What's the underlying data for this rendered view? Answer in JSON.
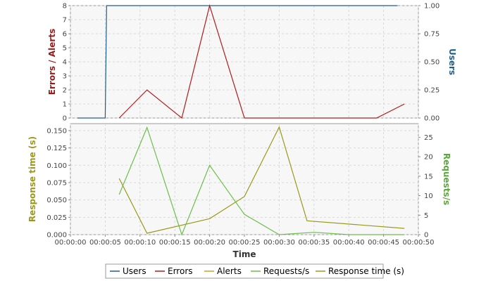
{
  "chart_data": [
    {
      "type": "line",
      "panel": "top",
      "xlabel": "",
      "ylabel_left": "Errors / Alerts",
      "ylabel_right": "Users",
      "ylim_left": [
        0,
        8
      ],
      "ylim_right": [
        0,
        1
      ],
      "yticks_left": [
        0,
        1,
        2,
        3,
        4,
        5,
        6,
        7,
        8
      ],
      "yticks_right": [
        0,
        0.25,
        0.5,
        0.75,
        1.0
      ],
      "ytick_labels_right": [
        "0.00",
        "0.25",
        "0.50",
        "0.75",
        "1.00"
      ],
      "grid": true,
      "series": [
        {
          "name": "Users",
          "color": "#1f5f8f",
          "axis": "right",
          "step": true,
          "points": [
            [
              1,
              0
            ],
            [
              5,
              0
            ],
            [
              5.2,
              1
            ],
            [
              47,
              1
            ]
          ]
        },
        {
          "name": "Errors",
          "color": "#b01c1c",
          "axis": "left",
          "points": [
            [
              7,
              0
            ],
            [
              11,
              2
            ],
            [
              16,
              0
            ],
            [
              20,
              8
            ],
            [
              25,
              0
            ],
            [
              44,
              0
            ],
            [
              48,
              1
            ]
          ]
        }
      ]
    },
    {
      "type": "line",
      "panel": "bottom",
      "xlabel": "Time",
      "ylabel_left": "Response time (s)",
      "ylabel_right": "Requests/s",
      "ylim_left": [
        0,
        0.16
      ],
      "ylim_right": [
        0,
        28.5
      ],
      "yticks_left": [
        0,
        0.025,
        0.05,
        0.075,
        0.1,
        0.125,
        0.15
      ],
      "ytick_labels_left": [
        "0.000",
        "0.025",
        "0.050",
        "0.075",
        "0.100",
        "0.125",
        "0.150"
      ],
      "yticks_right": [
        0,
        5,
        10,
        15,
        20,
        25
      ],
      "grid": true,
      "series": [
        {
          "name": "Response time (s)",
          "color": "#9a9a1a",
          "axis": "left",
          "points": [
            [
              7,
              0.081
            ],
            [
              11,
              0.002
            ],
            [
              20,
              0.023
            ],
            [
              25,
              0.055
            ],
            [
              30,
              0.155
            ],
            [
              34,
              0.02
            ],
            [
              48,
              0.009
            ]
          ]
        },
        {
          "name": "Requests/s",
          "color": "#6cbf4a",
          "axis": "right",
          "points": [
            [
              7,
              10.3
            ],
            [
              11,
              27.5
            ],
            [
              16,
              0
            ],
            [
              20,
              17.8
            ],
            [
              25,
              5.2
            ],
            [
              30,
              0
            ],
            [
              35,
              0.6
            ],
            [
              40,
              0
            ],
            [
              48,
              0
            ]
          ]
        }
      ]
    }
  ],
  "x_axis": {
    "range": [
      0,
      50
    ],
    "ticks": [
      0,
      5,
      10,
      15,
      20,
      25,
      30,
      35,
      40,
      45,
      50
    ],
    "tick_labels": [
      "00:00:00",
      "00:00:05",
      "00:00:10",
      "00:00:15",
      "00:00:20",
      "00:00:25",
      "00:00:30",
      "00:00:35",
      "00:00:40",
      "00:00:45",
      "00:00:50"
    ],
    "title": "Time"
  },
  "legend": {
    "placement": "bottom-center",
    "items": [
      {
        "name": "Users",
        "color": "#1f5f8f"
      },
      {
        "name": "Errors",
        "color": "#b01c1c"
      },
      {
        "name": "Alerts",
        "color": "#c9a227"
      },
      {
        "name": "Requests/s",
        "color": "#6cbf4a"
      },
      {
        "name": "Response time (s)",
        "color": "#9a9a1a"
      }
    ]
  },
  "colors": {
    "plot_bg": "#f7f7f7",
    "axis_title_errors": "#9b1b1b",
    "axis_title_users": "#1f5f8f",
    "axis_title_response": "#9a9a1a",
    "axis_title_requests": "#5aa83a"
  }
}
